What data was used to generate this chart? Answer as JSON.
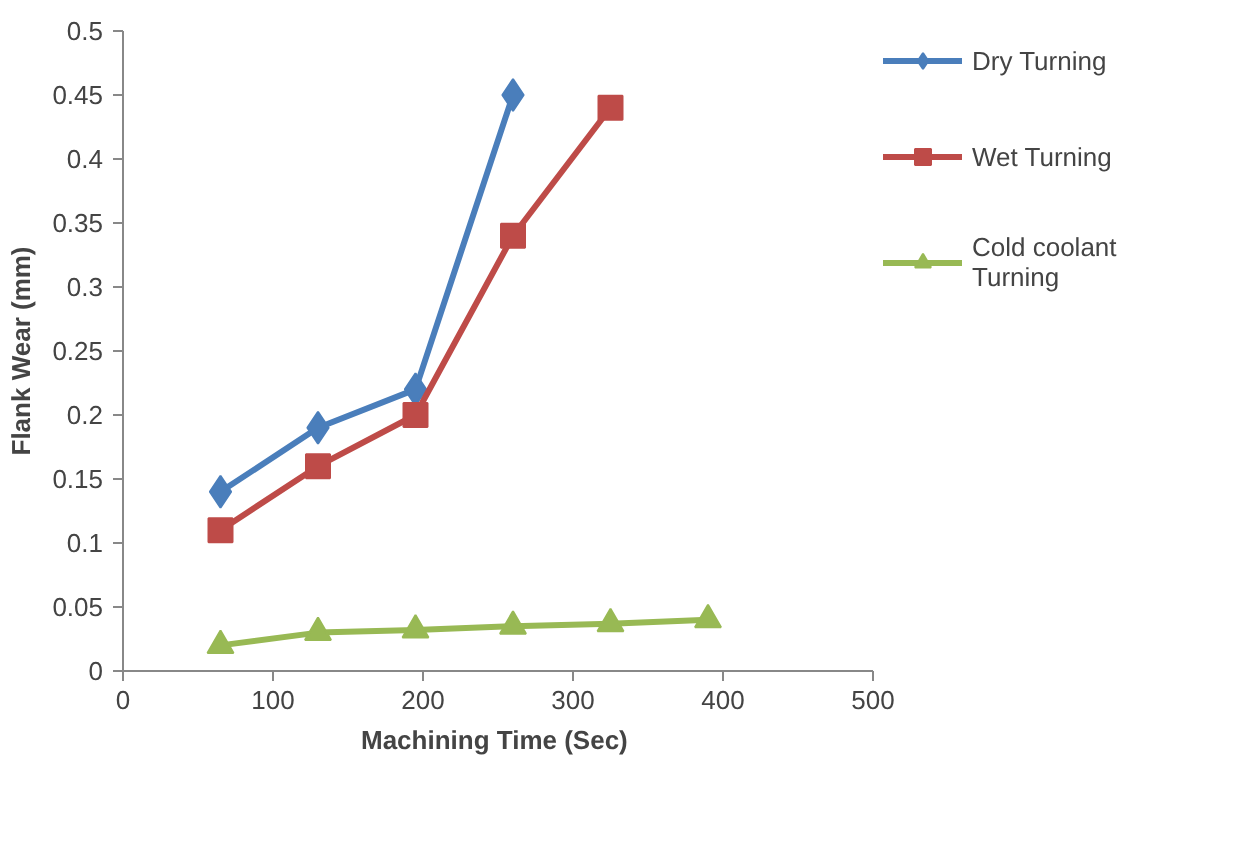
{
  "chart_data": {
    "type": "line",
    "xlabel": "Machining  Time (Sec)",
    "ylabel": "Flank Wear (mm)",
    "xlim": [
      0,
      500
    ],
    "xticks": [
      0,
      100,
      200,
      300,
      400,
      500
    ],
    "ylim": [
      0,
      0.5
    ],
    "yticks": [
      0,
      0.05,
      0.1,
      0.15,
      0.2,
      0.25,
      0.3,
      0.35,
      0.4,
      0.45,
      0.5
    ],
    "grid": false,
    "legend": "right",
    "series": [
      {
        "name": "Dry Turning",
        "color": "#4a7ebb",
        "marker": "diamond",
        "x": [
          65,
          130,
          195,
          260
        ],
        "values": [
          0.14,
          0.19,
          0.22,
          0.45
        ]
      },
      {
        "name": "Wet Turning",
        "color": "#be4b48",
        "marker": "square",
        "x": [
          65,
          130,
          195,
          260,
          325
        ],
        "values": [
          0.11,
          0.16,
          0.2,
          0.34,
          0.44
        ]
      },
      {
        "name": "Cold coolant Turning",
        "color": "#98b954",
        "marker": "triangle",
        "x": [
          65,
          130,
          195,
          260,
          325,
          390
        ],
        "values": [
          0.02,
          0.03,
          0.032,
          0.035,
          0.037,
          0.04
        ]
      }
    ]
  }
}
